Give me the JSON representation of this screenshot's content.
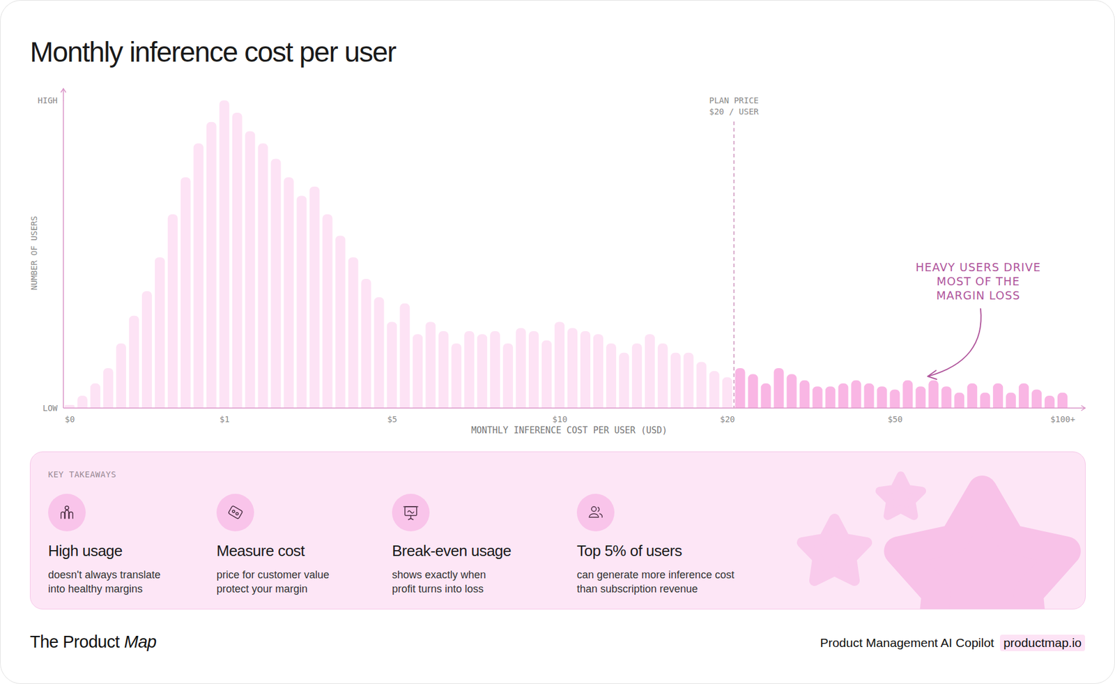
{
  "chart_data": {
    "type": "bar",
    "title": "Monthly inference cost per user",
    "x_label": "MONTHLY INFERENCE COST PER USER (USD)",
    "y_label": "NUMBER OF USERS",
    "categories": [
      "$0",
      null,
      null,
      null,
      null,
      null,
      null,
      null,
      null,
      null,
      null,
      null,
      "$1",
      null,
      null,
      null,
      null,
      null,
      null,
      null,
      null,
      null,
      null,
      null,
      null,
      "$5",
      null,
      null,
      null,
      null,
      null,
      null,
      null,
      null,
      null,
      null,
      null,
      null,
      "$10",
      null,
      null,
      null,
      null,
      null,
      null,
      null,
      null,
      null,
      null,
      null,
      null,
      "$20",
      null,
      null,
      null,
      null,
      null,
      null,
      null,
      null,
      null,
      null,
      null,
      null,
      "$50",
      null,
      null,
      null,
      null,
      null,
      null,
      null,
      null,
      null,
      null,
      null,
      null,
      "$100+"
    ],
    "values": [
      1,
      4,
      8,
      13,
      21,
      30,
      38,
      49,
      63,
      75,
      86,
      93,
      100,
      96,
      90,
      86,
      81,
      75,
      69,
      72,
      63,
      56,
      49,
      42,
      36,
      28,
      34,
      24,
      28,
      25,
      21,
      25,
      24,
      25,
      21,
      26,
      25,
      22,
      28,
      26,
      25,
      24,
      21,
      18,
      21,
      24,
      21,
      18,
      18,
      15,
      12,
      10,
      13,
      11,
      8,
      13,
      11,
      9,
      7,
      7,
      8,
      9,
      8,
      7,
      6,
      9,
      7,
      9,
      7,
      5,
      8,
      5,
      8,
      5,
      8,
      6,
      4,
      5
    ],
    "colors": [
      "#fde3f5",
      "#fde3f5",
      "#fde3f5",
      "#fde3f5",
      "#fde3f5",
      "#fde3f5",
      "#fde3f5",
      "#fde3f5",
      "#fde3f5",
      "#fde3f5",
      "#fde3f5",
      "#fde3f5",
      "#fde3f5",
      "#fde3f5",
      "#fde3f5",
      "#fde3f5",
      "#fde3f5",
      "#fde3f5",
      "#fde3f5",
      "#fde3f5",
      "#fde3f5",
      "#fde3f5",
      "#fde3f5",
      "#fde3f5",
      "#fde3f5",
      "#fde3f5",
      "#fde3f5",
      "#fde3f5",
      "#fde3f5",
      "#fde3f5",
      "#fde3f5",
      "#fde3f5",
      "#fde3f5",
      "#fde3f5",
      "#fde3f5",
      "#fde3f5",
      "#fde3f5",
      "#fde3f5",
      "#fde3f5",
      "#fde3f5",
      "#fde3f5",
      "#fde3f5",
      "#fde3f5",
      "#fde3f5",
      "#fde3f5",
      "#fde3f5",
      "#fde3f5",
      "#fde3f5",
      "#fde3f5",
      "#fde3f5",
      "#fde3f5",
      "#fde3f5",
      "#f9b6e4",
      "#f9b6e4",
      "#f9b6e4",
      "#f9b6e4",
      "#f9b6e4",
      "#f9b6e4",
      "#f9b6e4",
      "#f9b6e4",
      "#f9b6e4",
      "#f9b6e4",
      "#f9b6e4",
      "#f9b6e4",
      "#f9b6e4",
      "#f9b6e4",
      "#f9b6e4",
      "#f9b6e4",
      "#f9b6e4",
      "#f9b6e4",
      "#f9b6e4",
      "#f9b6e4",
      "#f9b6e4",
      "#f9b6e4",
      "#f9b6e4",
      "#f9b6e4",
      "#f9b6e4",
      "#f9b6e4"
    ],
    "ylim": [
      0,
      100
    ],
    "yticks": [
      {
        "value": 0,
        "label": "LOW"
      },
      {
        "value": 100,
        "label": "HIGH"
      }
    ],
    "grid": false,
    "reference_line": {
      "x": "$20",
      "label": [
        "PLAN PRICE",
        "$20 / USER"
      ]
    },
    "annotation": [
      "HEAVY USERS DRIVE",
      "MOST OF THE",
      "MARGIN LOSS"
    ]
  },
  "takeaways": {
    "title": "KEY TAKEAWAYS",
    "items": [
      {
        "heading": "High usage",
        "text": [
          "doesn't always translate",
          "into healthy margins"
        ]
      },
      {
        "heading": "Measure cost",
        "text": [
          "price for customer value",
          "protect your margin"
        ]
      },
      {
        "heading": "Break-even usage",
        "text": [
          "shows exactly when",
          "profit turns into loss"
        ]
      },
      {
        "heading": "Top 5% of users",
        "text": [
          "can generate more inference cost",
          "than subscription revenue"
        ]
      }
    ]
  },
  "footer": {
    "brand": "The Product",
    "brand_emphasis": "Map",
    "tagline": "Product Management AI Copilot",
    "link": "productmap.io"
  }
}
